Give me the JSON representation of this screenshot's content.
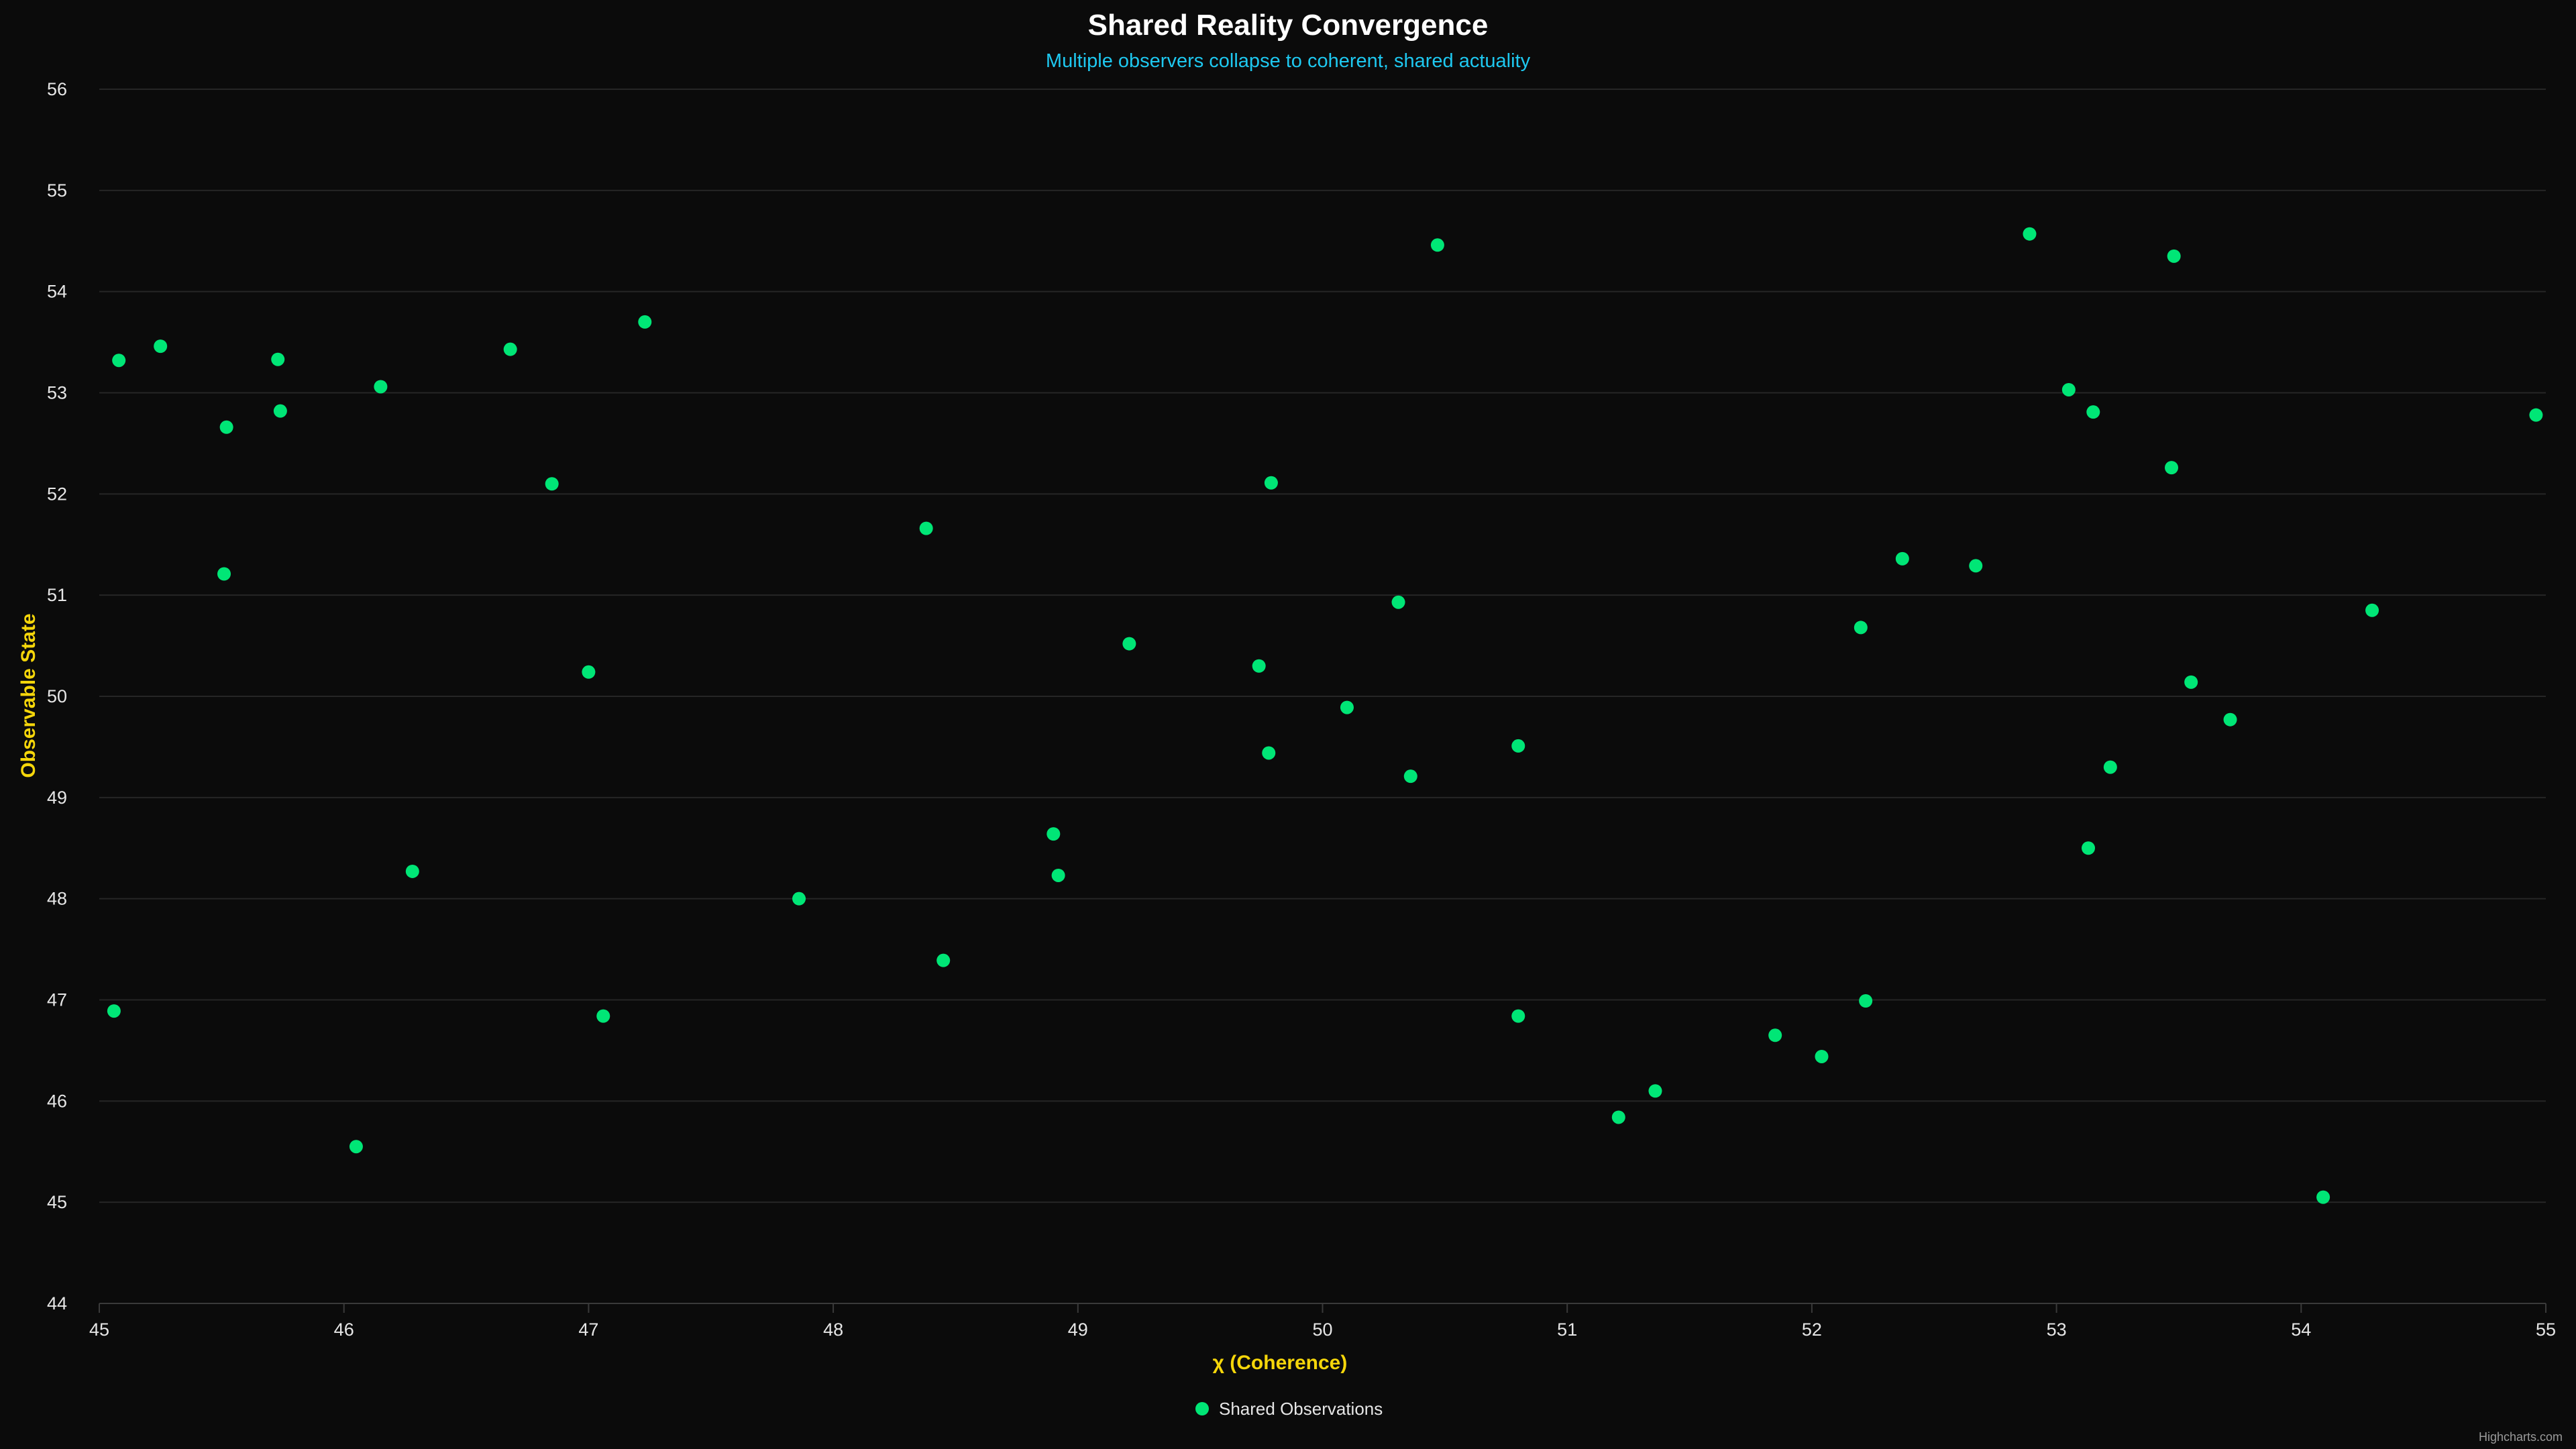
{
  "chart_data": {
    "type": "scatter",
    "title": "Shared Reality Convergence",
    "subtitle": "Multiple observers collapse to coherent, shared actuality",
    "xlabel": "χ (Coherence)",
    "ylabel": "Observable State",
    "xlim": [
      45,
      55
    ],
    "ylim": [
      44,
      56
    ],
    "x_ticks": [
      45,
      46,
      47,
      48,
      49,
      50,
      51,
      52,
      53,
      54,
      55
    ],
    "y_ticks": [
      44,
      45,
      46,
      47,
      48,
      49,
      50,
      51,
      52,
      53,
      54,
      55,
      56
    ],
    "grid": true,
    "legend_position": "bottom-center",
    "series": [
      {
        "name": "Shared Observations",
        "color": "#00e676",
        "points": [
          [
            45.08,
            53.32
          ],
          [
            45.25,
            53.46
          ],
          [
            45.52,
            52.66
          ],
          [
            45.51,
            51.21
          ],
          [
            45.73,
            53.33
          ],
          [
            45.74,
            52.82
          ],
          [
            46.15,
            53.06
          ],
          [
            46.68,
            53.43
          ],
          [
            47.23,
            53.7
          ],
          [
            46.85,
            52.1
          ],
          [
            47.0,
            50.24
          ],
          [
            45.06,
            46.89
          ],
          [
            46.28,
            48.27
          ],
          [
            46.05,
            45.55
          ],
          [
            47.06,
            46.84
          ],
          [
            47.86,
            48.0
          ],
          [
            48.38,
            51.66
          ],
          [
            48.45,
            47.39
          ],
          [
            48.9,
            48.64
          ],
          [
            48.92,
            48.23
          ],
          [
            49.21,
            50.52
          ],
          [
            49.74,
            50.3
          ],
          [
            49.79,
            52.11
          ],
          [
            49.78,
            49.44
          ],
          [
            50.1,
            49.89
          ],
          [
            50.31,
            50.93
          ],
          [
            50.36,
            49.21
          ],
          [
            50.47,
            54.46
          ],
          [
            50.8,
            49.51
          ],
          [
            50.8,
            46.84
          ],
          [
            51.21,
            45.84
          ],
          [
            51.36,
            46.1
          ],
          [
            51.85,
            46.65
          ],
          [
            52.04,
            46.44
          ],
          [
            52.2,
            50.68
          ],
          [
            52.22,
            46.99
          ],
          [
            52.37,
            51.36
          ],
          [
            52.67,
            51.29
          ],
          [
            52.89,
            54.57
          ],
          [
            53.05,
            53.03
          ],
          [
            53.15,
            52.81
          ],
          [
            53.13,
            48.5
          ],
          [
            53.22,
            49.3
          ],
          [
            53.47,
            52.26
          ],
          [
            53.48,
            54.35
          ],
          [
            53.55,
            50.14
          ],
          [
            53.71,
            49.77
          ],
          [
            54.09,
            45.05
          ],
          [
            54.29,
            50.85
          ],
          [
            54.96,
            52.78
          ]
        ]
      }
    ]
  },
  "credit": "Highcharts.com",
  "background_color": "#0b0b0b"
}
